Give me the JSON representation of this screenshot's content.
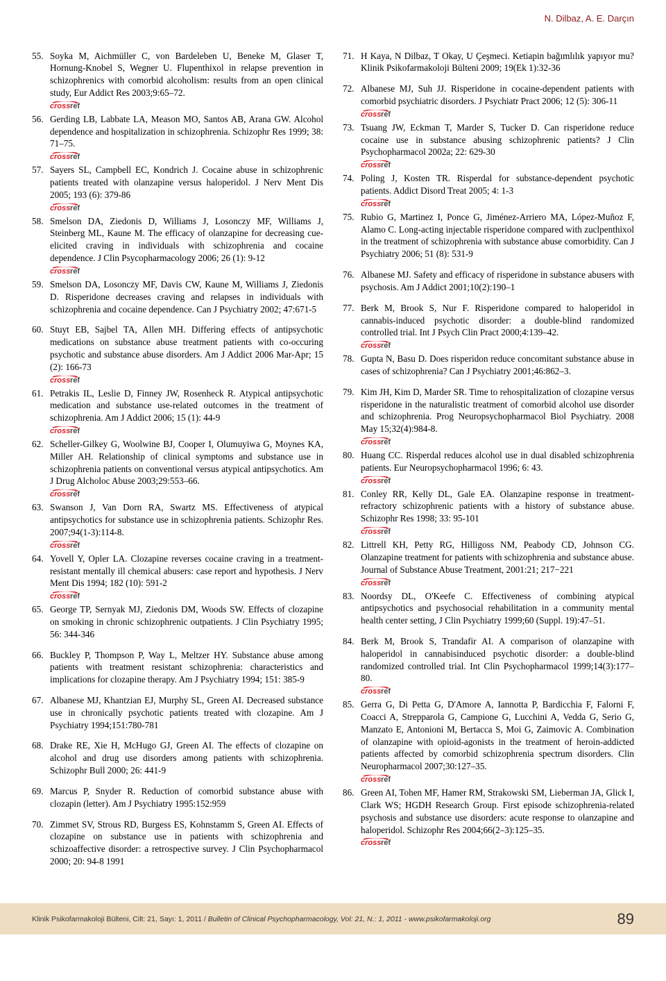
{
  "header_author": "N. Dilbaz, A. E. Darçın",
  "left": [
    {
      "n": "55.",
      "t": "Soyka M, Aichmüller C, von Bardeleben U, Beneke M, Glaser T, Hornung-Knobel S, Wegner U. Flupenthixol in relapse prevention in schizophrenics with comorbid alcoholism: results from an open clinical study, Eur Addict Res 2003;9:65–72.",
      "cr": true
    },
    {
      "n": "56.",
      "t": "Gerding LB, Labbate LA, Meason MO, Santos AB, Arana GW. Alcohol dependence and hospitalization in schizophrenia. Schizophr Res 1999; 38: 71–75.",
      "cr": true
    },
    {
      "n": "57.",
      "t": "Sayers SL, Campbell EC, Kondrich J. Cocaine abuse in schizophrenic patients treated with olanzapine versus haloperidol.  J Nerv Ment Dis 2005; 193 (6): 379-86",
      "cr": true
    },
    {
      "n": "58.",
      "t": "Smelson DA, Ziedonis D, Williams J, Losonczy MF, Williams J, Steinberg ML, Kaune M. The efficacy of olanzapine for decreasing cue-elicited craving in individuals with schizophrenia and cocaine dependence. J Clin Psycopharmacology 2006; 26 (1): 9-12",
      "cr": true
    },
    {
      "n": "59.",
      "t": "Smelson DA, Losonczy MF, Davis CW, Kaune M, Williams J, Ziedonis D. Risperidone decreases craving and relapses in individuals with schizophrenia and cocaine dependence. Can J Psychiatry 2002; 47:671-5",
      "cr": false,
      "gap": true
    },
    {
      "n": "60.",
      "t": "Stuyt EB, Sajbel TA, Allen MH. Differing effects of antipsychotic medications on substance abuse treatment patients with co-occuring psychotic and substance abuse disorders. Am J Addict 2006 Mar-Apr; 15 (2): 166-73",
      "cr": true
    },
    {
      "n": "61.",
      "t": "Petrakis IL, Leslie D, Finney JW, Rosenheck R. Atypical antipsychotic medication and substance use-related outcomes in the treatment of schizophrenia. Am J Addict 2006; 15 (1): 44-9",
      "cr": true
    },
    {
      "n": "62.",
      "t": "Scheller-Gilkey G, Woolwine BJ, Cooper I, Olumuyiwa G, Moynes KA, Miller AH. Relationship of clinical symptoms and substance use in schizophrenia patients on conventional versus atypical antipsychotics. Am J Drug Alcholoc Abuse 2003;29:553–66.",
      "cr": true
    },
    {
      "n": "63.",
      "t": "Swanson J, Van Dorn RA, Swartz MS. Effectiveness of atypical antipsychotics for substance use in schizophrenia patients. Schizophr Res. 2007;94(1-3):114-8.",
      "cr": true
    },
    {
      "n": "64.",
      "t": "Yovell Y, Opler LA. Clozapine reverses cocaine craving in a treatment-resistant mentally ill chemical abusers: case report and hypothesis. J Nerv Ment Dis 1994; 182 (10): 591-2",
      "cr": true
    },
    {
      "n": "65.",
      "t": "George TP, Sernyak MJ, Ziedonis DM, Woods SW. Effects of clozapine on smoking in chronic schizophrenic outpatients. J Clin Psychiatry 1995; 56: 344-346",
      "cr": false,
      "gap": true
    },
    {
      "n": "66.",
      "t": "Buckley P, Thompson P, Way L, Meltzer HY. Substance abuse among patients with treatment resistant schizophrenia: characteristics and implications for clozapine therapy. Am J Psychiatry 1994; 151: 385-9",
      "cr": false,
      "gap": true
    },
    {
      "n": "67.",
      "t": "Albanese MJ, Khantzian EJ, Murphy SL, Green AI. Decreased substance use in chronically psychotic patients treated with clozapine. Am J Psychiatry 1994;151:780-781",
      "cr": false,
      "gap": true
    },
    {
      "n": "68.",
      "t": "Drake RE, Xie H, McHugo GJ, Green AI. The effects of clozapine on alcohol and drug use disorders among patients with schizophrenia. Schizophr Bull 2000; 26: 441-9",
      "cr": false,
      "gap": true
    },
    {
      "n": "69.",
      "t": "Marcus P, Snyder R. Reduction of comorbid substance abuse with clozapin (letter). Am J Psychiatry 1995:152:959",
      "cr": false,
      "gap": true
    },
    {
      "n": "70.",
      "t": "Zimmet SV, Strous RD, Burgess ES, Kohnstamm S, Green AI. Effects of clozapine on substance use in patients with schizophrenia and schizoaffective disorder: a retrospective survey. J Clin Psychopharmacol 2000; 20: 94-8 1991",
      "cr": false
    }
  ],
  "right": [
    {
      "n": "71.",
      "t": "H Kaya, N Dilbaz, T Okay, U Çeşmeci. Ketiapin bağımlılık yapıyor mu? Klinik Psikofarmakoloji Bülteni 2009; 19(Ek 1):32-36",
      "cr": false,
      "gap": true
    },
    {
      "n": "72.",
      "t": "Albanese MJ, Suh JJ. Risperidone in cocaine-dependent patients with comorbid psychiatric disorders. J Psychiatr Pract 2006; 12 (5): 306-11",
      "cr": true
    },
    {
      "n": "73.",
      "t": "Tsuang JW, Eckman T, Marder S, Tucker D. Can risperidone reduce cocaine use in substance abusing schizophrenic patients? J Clin Psychopharmacol 2002a; 22: 629-30",
      "cr": true
    },
    {
      "n": "74.",
      "t": "Poling J, Kosten TR. Risperdal for substance-dependent psychotic patients. Addict Disord Treat 2005; 4: 1-3",
      "cr": true
    },
    {
      "n": "75.",
      "t": "Rubio G, Martinez I, Ponce G, Jiménez-Arriero MA, López-Muñoz F, Alamo C. Long-acting injectable risperidone compared with zuclpenthixol in the treatment of schizophrenia with substance abuse comorbidity. Can J Psychiatry 2006; 51 (8): 531-9",
      "cr": false,
      "gap": true
    },
    {
      "n": "76.",
      "t": "Albanese MJ. Safety and efficacy of risperidone in substance abusers with psychosis. Am J Addict 2001;10(2):190–1",
      "cr": false,
      "gap": true
    },
    {
      "n": "77.",
      "t": "Berk M, Brook S, Nur F. Risperidone compared to haloperidol in cannabis-induced psychotic disorder: a double-blind randomized controlled trial. Int J Psych Clin Pract 2000;4:139–42.",
      "cr": true
    },
    {
      "n": "78.",
      "t": "Gupta N, Basu D. Does risperidon reduce concomitant substance abuse in cases of schizophrenia? Can J Psychiatry 2001;46:862–3.",
      "cr": false,
      "gap": true
    },
    {
      "n": "79.",
      "t": "Kim JH, Kim D, Marder SR. Time to rehospitalization of clozapine versus risperidone in the naturalistic treatment of comorbid alcohol use disorder and schizophrenia. Prog Neuropsychopharmacol Biol Psychiatry. 2008 May 15;32(4):984-8.",
      "cr": true
    },
    {
      "n": "80.",
      "t": "Huang CC. Risperdal reduces alcohol use in dual disabled schizophrenia patients. Eur Neuropsychopharmacol 1996; 6: 43.",
      "cr": true
    },
    {
      "n": "81.",
      "t": "Conley RR, Kelly DL, Gale EA. Olanzapine response in treatment-refractory schizophrenic patients with a history of substance abuse. Schizophr Res 1998; 33: 95-101",
      "cr": true
    },
    {
      "n": "82.",
      "t": "Littrell KH, Petty RG, Hilligoss NM, Peabody CD, Johnson CG. Olanzapine treatment for patients with schizophrenia and substance abuse. Journal of Substance Abuse Treatment, 2001:21; 217−221",
      "cr": true
    },
    {
      "n": "83.",
      "t": "Noordsy DL, O'Keefe C. Effectiveness of combining atypical antipsychotics and psychosocial rehabilitation in a community mental health center setting, J Clin Psychiatry 1999;60 (Suppl. 19):47–51.",
      "cr": false,
      "gap": true
    },
    {
      "n": "84.",
      "t": "Berk M, Brook S, Trandafir AI. A comparison of olanzapine with haloperidol in cannabisinduced psychotic disorder: a double-blind randomized controlled trial. Int Clin Psychopharmacol 1999;14(3):177–80.",
      "cr": true
    },
    {
      "n": "85.",
      "t": "Gerra G, Di Petta G, D'Amore A, Iannotta P, Bardicchia F, Falorni F, Coacci A, Strepparola G, Campione G, Lucchini A, Vedda G, Serio G, Manzato E, Antonioni M, Bertacca S, Moi G, Zaimovic A. Combination of olanzapine with opioid-agonists in the treatment of heroin-addicted patients affected by comorbid schizophrenia spectrum disorders. Clin Neuropharmacol 2007;30:127–35.",
      "cr": true
    },
    {
      "n": "86.",
      "t": "Green AI, Tohen MF, Hamer RM, Strakowski SM, Lieberman JA, Glick I, Clark WS; HGDH Research Group. First episode schizophrenia-related psychosis and substance use disorders: acute response to olanzapine and haloperidol. Schizophr Res 2004;66(2–3):125–35.",
      "cr": true
    }
  ],
  "footer": {
    "tr": "Klinik Psikofarmakoloji Bülteni, Cilt: 21, Sayı: 1, 2011 / ",
    "en": "Bulletin of Clinical Psychopharmacology, Vol: 21, N.: 1, 2011 - www.psikofarmakoloji.org",
    "page": "89"
  },
  "style": {
    "accent": "#8c1919",
    "crossref_red": "#d8222a",
    "crossref_dark": "#4a4a4a",
    "footer_bg": "#efddc1"
  }
}
